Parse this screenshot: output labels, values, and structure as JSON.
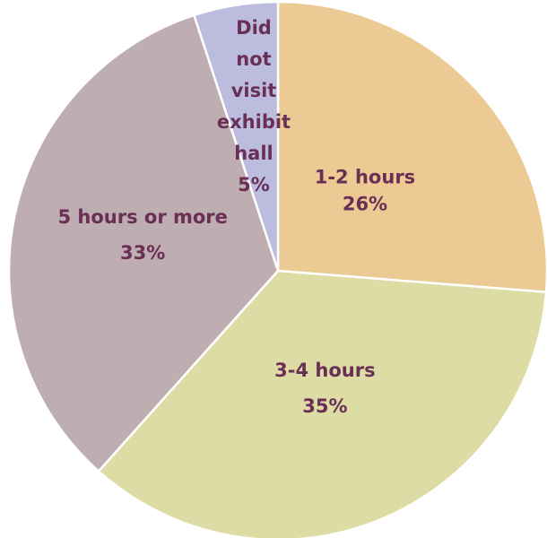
{
  "chart_data": {
    "type": "pie",
    "title": "",
    "start_angle_deg": 0,
    "direction": "clockwise",
    "slices": [
      {
        "label": "1-2 hours",
        "value": 26,
        "value_label": "26%",
        "color": "#ecca94"
      },
      {
        "label": "3-4 hours",
        "value": 35,
        "value_label": "35%",
        "color": "#dedca5"
      },
      {
        "label": "5 hours or more",
        "value": 33,
        "value_label": "33%",
        "color": "#bfaeb1"
      },
      {
        "label": "Did not visit exhibit hall",
        "value": 5,
        "value_label": "5%",
        "color": "#bcbdde"
      }
    ],
    "text_color": "#6a2f54"
  }
}
